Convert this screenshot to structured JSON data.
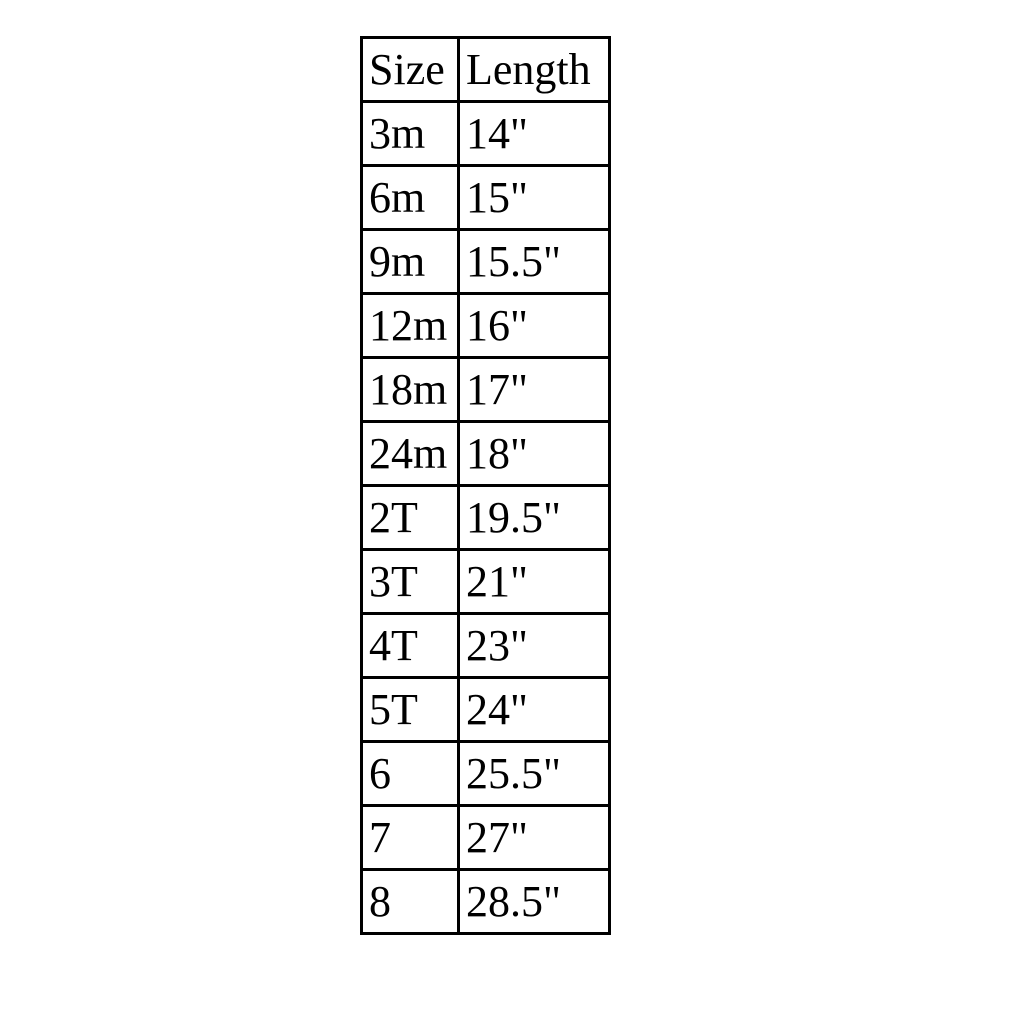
{
  "table": {
    "header": [
      "Size",
      "Length"
    ],
    "rows": [
      [
        "3m",
        "14\""
      ],
      [
        "6m",
        "15\""
      ],
      [
        "9m",
        "15.5\""
      ],
      [
        "12m",
        "16\""
      ],
      [
        "18m",
        "17\""
      ],
      [
        "24m",
        "18\""
      ],
      [
        "2T",
        "19.5\""
      ],
      [
        "3T",
        "21\""
      ],
      [
        "4T",
        "23\""
      ],
      [
        "5T",
        "24\""
      ],
      [
        "6",
        "25.5\""
      ],
      [
        "7",
        "27\""
      ],
      [
        "8",
        "28.5\""
      ]
    ]
  }
}
